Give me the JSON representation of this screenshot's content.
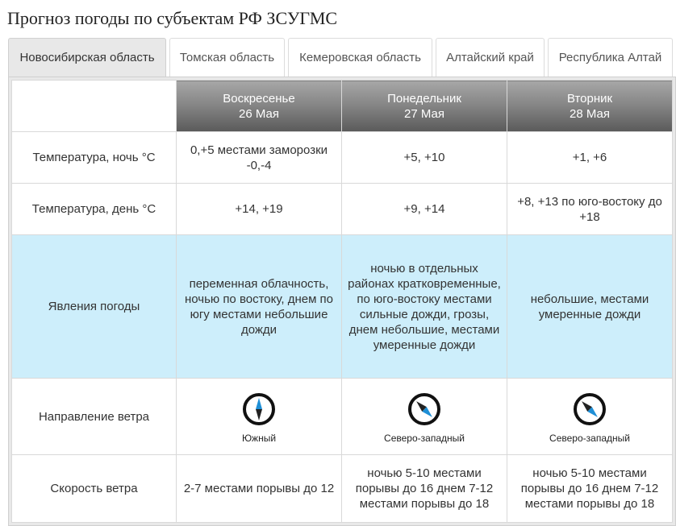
{
  "page": {
    "title": "Прогноз погоды по субъектам РФ ЗСУГМС"
  },
  "tabs": [
    {
      "label": "Новосибирская область",
      "active": true
    },
    {
      "label": "Томская область",
      "active": false
    },
    {
      "label": "Кемеровская область",
      "active": false
    },
    {
      "label": "Алтайский край",
      "active": false
    },
    {
      "label": "Республика Алтай",
      "active": false
    }
  ],
  "days": [
    {
      "weekday": "Воскресенье",
      "date": "26 Мая"
    },
    {
      "weekday": "Понедельник",
      "date": "27 Мая"
    },
    {
      "weekday": "Вторник",
      "date": "28 Мая"
    }
  ],
  "rows": {
    "temp_night": {
      "label": "Температура, ночь °C",
      "values": [
        "0,+5 местами заморозки -0,-4",
        "+5, +10",
        "+1, +6"
      ]
    },
    "temp_day": {
      "label": "Температура, день °C",
      "values": [
        "+14, +19",
        "+9, +14",
        "+8, +13 по юго-востоку до +18"
      ]
    },
    "phenomena": {
      "label": "Явления погоды",
      "values": [
        "переменная облачность, ночью по востоку, днем по югу местами небольшие дожди",
        "ночью в отдельных районах кратковременные, по юго-востоку местами сильные дожди, грозы, днем небольшие, местами умеренные дожди",
        "небольшие, местами умеренные дожди"
      ]
    },
    "wind_direction": {
      "label": "Направление ветра",
      "values": [
        "Южный",
        "Северо-западный",
        "Северо-западный"
      ],
      "icons": [
        "compass-icon-south",
        "compass-icon-northwest",
        "compass-icon-northwest"
      ],
      "bearing_deg": [
        180,
        315,
        315
      ]
    },
    "wind_speed": {
      "label": "Скорость ветра",
      "values": [
        "2-7 местами порывы до 12",
        "ночью 5-10 местами порывы до 16 днем 7-12 местами порывы до 18",
        "ночью 5-10 местами порывы до 16 днем 7-12 местами порывы до 18"
      ]
    }
  },
  "colors": {
    "phenomena_bg": "#cdeefb",
    "compass_north": "#1f8fd6",
    "compass_south": "#222222",
    "header_gradient_dark": "#5a5a5a"
  }
}
